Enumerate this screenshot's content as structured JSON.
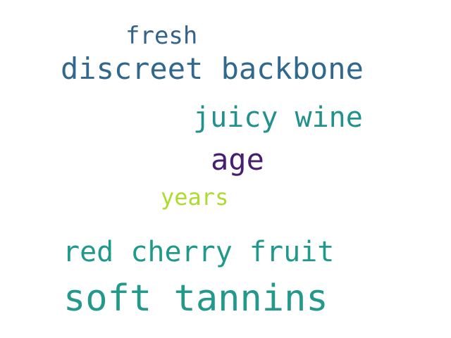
{
  "words": {
    "fresh": {
      "text": "fresh",
      "color": "#33638d"
    },
    "discreet_backbone": {
      "text": "discreet backbone",
      "color": "#31688e"
    },
    "juicy_wine": {
      "text": "juicy wine",
      "color": "#21918c"
    },
    "age": {
      "text": "age",
      "color": "#481f70"
    },
    "years": {
      "text": "years",
      "color": "#addc30"
    },
    "red_cherry_fruit": {
      "text": "red cherry fruit",
      "color": "#1f9a8a"
    },
    "soft_tannins": {
      "text": "soft tannins",
      "color": "#23998b"
    }
  }
}
